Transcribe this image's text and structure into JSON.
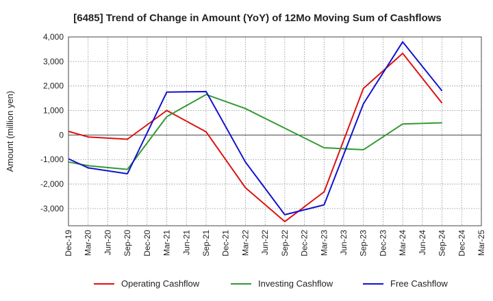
{
  "chart_data": {
    "type": "line",
    "title": "[6485]  Trend of Change in Amount (YoY) of 12Mo Moving Sum of Cashflows",
    "xlabel": "",
    "ylabel": "Amount (million yen)",
    "ylim": [
      -3700,
      4000
    ],
    "yticks": [
      4000,
      3000,
      2000,
      1000,
      0,
      -1000,
      -2000,
      -3000
    ],
    "ytick_labels": [
      "4,000",
      "3,000",
      "2,000",
      "1,000",
      "0",
      "-1,000",
      "-2,000",
      "-3,000"
    ],
    "categories": [
      "Dec-19",
      "Mar-20",
      "Jun-20",
      "Sep-20",
      "Dec-20",
      "Mar-21",
      "Jun-21",
      "Sep-21",
      "Dec-21",
      "Mar-22",
      "Jun-22",
      "Sep-22",
      "Dec-22",
      "Mar-23",
      "Jun-23",
      "Sep-23",
      "Dec-23",
      "Mar-24",
      "Jun-24",
      "Sep-24",
      "Dec-24",
      "Mar-25"
    ],
    "grid": true,
    "legend_position": "bottom",
    "series": [
      {
        "name": "Operating Cashflow",
        "color": "#dd1111",
        "values": [
          150,
          -80,
          null,
          -170,
          null,
          1000,
          null,
          130,
          null,
          -2150,
          null,
          -3530,
          null,
          -2320,
          null,
          1900,
          null,
          3330,
          null,
          1300,
          null,
          null
        ]
      },
      {
        "name": "Investing Cashflow",
        "color": "#339933",
        "values": [
          -1100,
          -1250,
          null,
          -1400,
          null,
          750,
          null,
          1650,
          null,
          1080,
          null,
          null,
          null,
          -520,
          null,
          -600,
          null,
          450,
          null,
          500,
          null,
          null
        ]
      },
      {
        "name": "Free Cashflow",
        "color": "#1111cc",
        "values": [
          -970,
          -1340,
          null,
          -1580,
          null,
          1750,
          null,
          1770,
          null,
          -1100,
          null,
          -3250,
          null,
          -2850,
          null,
          1270,
          null,
          3800,
          null,
          1800,
          null,
          null
        ]
      }
    ]
  }
}
